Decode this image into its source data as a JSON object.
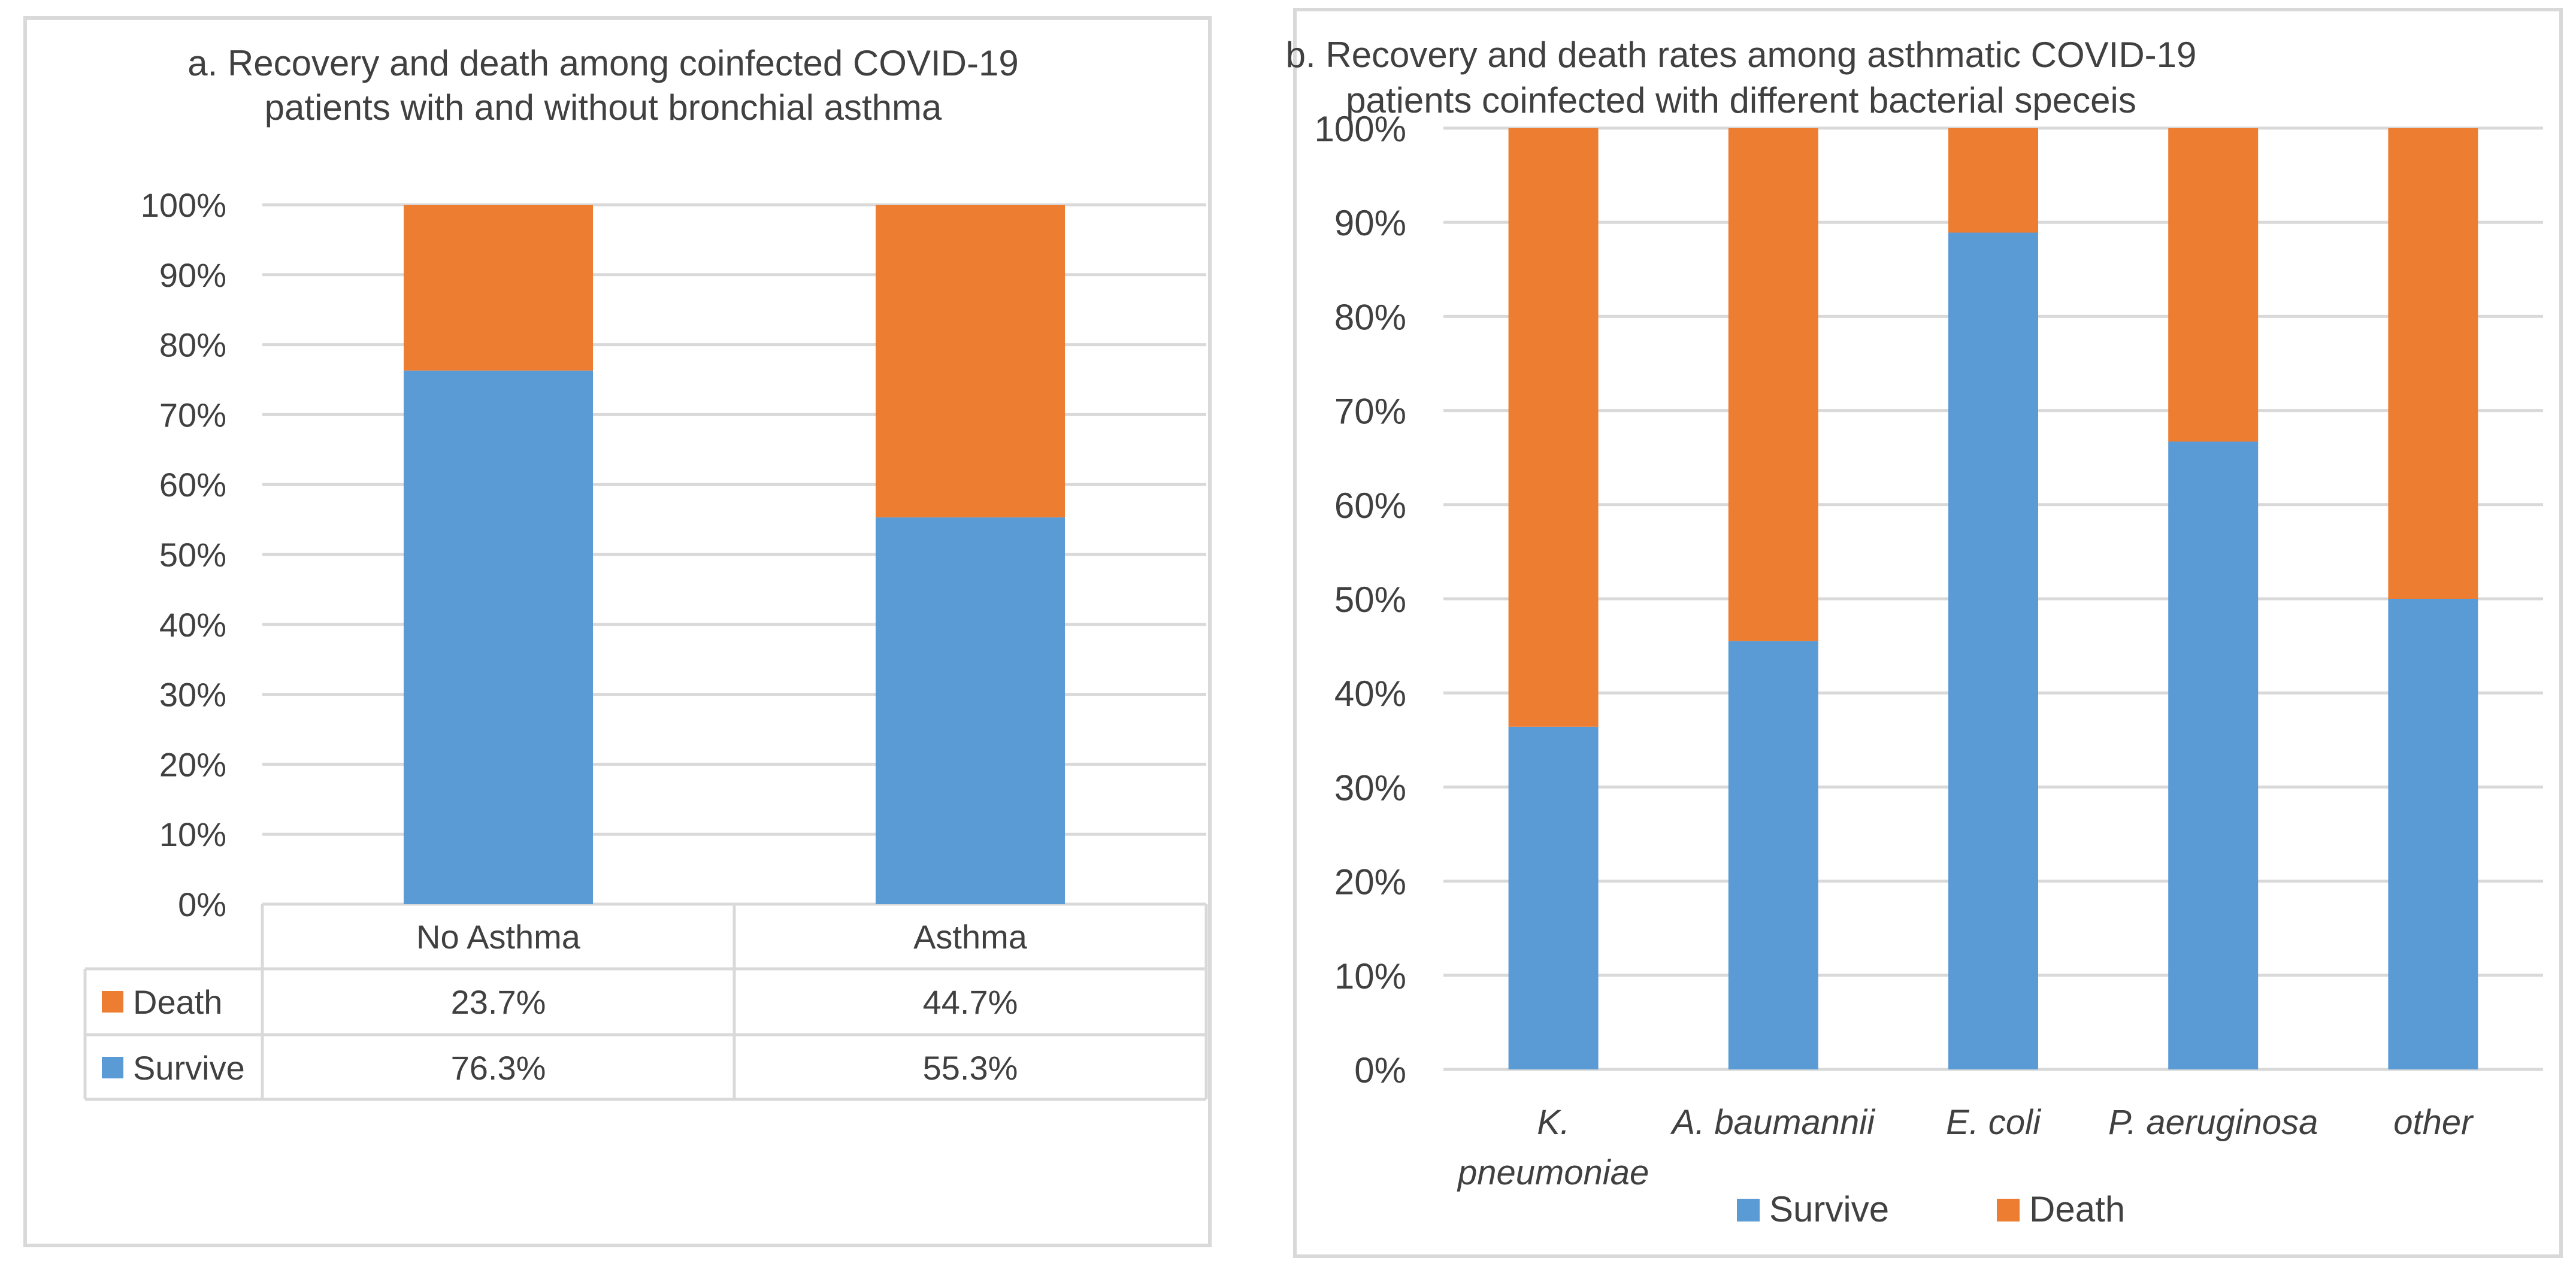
{
  "colors": {
    "survive": "#5B9BD5",
    "death": "#ED7D31",
    "grid": "#D9D9D9",
    "text": "#404040",
    "frame": "#D9D9D9"
  },
  "chart_data": [
    {
      "type": "bar",
      "stacked": true,
      "title_lines": [
        "a. Recovery and death among coinfected COVID-19",
        "patients with and without bronchial asthma"
      ],
      "categories": [
        "No Asthma",
        "Asthma"
      ],
      "series": [
        {
          "name": "Survive",
          "values": [
            76.3,
            55.3
          ],
          "color": "#5B9BD5"
        },
        {
          "name": "Death",
          "values": [
            23.7,
            44.7
          ],
          "color": "#ED7D31"
        }
      ],
      "data_table": {
        "rows": [
          {
            "name": "Death",
            "cells": [
              "23.7%",
              "44.7%"
            ]
          },
          {
            "name": "Survive",
            "cells": [
              "76.3%",
              "55.3%"
            ]
          }
        ]
      },
      "ylim": [
        0,
        100
      ],
      "yticks": [
        "0%",
        "10%",
        "20%",
        "30%",
        "40%",
        "50%",
        "60%",
        "70%",
        "80%",
        "90%",
        "100%"
      ],
      "grid": true
    },
    {
      "type": "bar",
      "stacked": true,
      "title_lines": [
        "b. Recovery and death rates among asthmatic COVID-19",
        "patients coinfected with different bacterial speceis"
      ],
      "categories": [
        "K. pneumoniae",
        "A. baumannii",
        "E. coli",
        "P. aeruginosa",
        "other"
      ],
      "category_lines": [
        [
          "K.",
          "pneumoniae"
        ],
        [
          "A. baumannii"
        ],
        [
          "E. coli"
        ],
        [
          "P. aeruginosa"
        ],
        [
          "other"
        ]
      ],
      "series": [
        {
          "name": "Survive",
          "values": [
            36.4,
            45.5,
            88.9,
            66.7,
            50.0
          ],
          "color": "#5B9BD5"
        },
        {
          "name": "Death",
          "values": [
            63.6,
            54.5,
            11.1,
            33.3,
            50.0
          ],
          "color": "#ED7D31"
        }
      ],
      "ylim": [
        0,
        100
      ],
      "yticks": [
        "0%",
        "10%",
        "20%",
        "30%",
        "40%",
        "50%",
        "60%",
        "70%",
        "80%",
        "90%",
        "100%"
      ],
      "legend": "bottom",
      "grid": true
    }
  ]
}
